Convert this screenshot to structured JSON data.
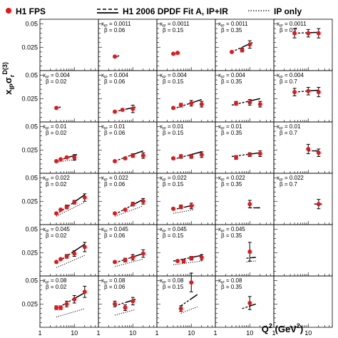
{
  "chart_data": {
    "type": "scatter",
    "title": "",
    "ylabel_base": "x",
    "ylabel_sub": "IP",
    "ylabel_mid": "σ",
    "ylabel_sub2": "r",
    "ylabel_sup": "D(3)",
    "xlabel_base": "Q",
    "xlabel_sup": "2",
    "xlabel_unit": " (GeV",
    "xlabel_unit_sup": "2",
    "xlabel_close": ")",
    "x_scale": "log",
    "xlim": [
      1,
      50
    ],
    "ylim": [
      0,
      0.055
    ],
    "x_ticks": [
      1,
      10
    ],
    "x_tick_labels": [
      "1",
      "10"
    ],
    "y_ticks": [
      0.025,
      0.05
    ],
    "y_tick_labels": [
      "0.025",
      "0.05"
    ],
    "grid": false,
    "legend_placement": "top",
    "legend": [
      {
        "label": "H1 FPS",
        "style": "marker",
        "color": "#e8161b"
      },
      {
        "label": "H1 2006 DPDF Fit A, IP+IR",
        "style": "dashed-solid"
      },
      {
        "label": "IP only",
        "style": "dotted"
      }
    ],
    "xp_prefix": "x",
    "xp_sub": "IP",
    "beta_prefix": "β",
    "rows": [
      {
        "xp": "0.004",
        "mult": 1
      },
      {
        "xp": "0.01",
        "mult": 1
      },
      {
        "xp": "0.022",
        "mult": 1
      },
      {
        "xp": "0.045",
        "mult": 1
      },
      {
        "xp": "0.08",
        "mult": 1
      }
    ],
    "panels": [
      {
        "row": 0,
        "col": 1,
        "xp": "0.0011",
        "beta": "0.06",
        "points": [
          [
            3,
            0.015,
            0.001
          ]
        ],
        "fit": [
          [
            3,
            0.014
          ],
          [
            4,
            0.016
          ]
        ],
        "ip": []
      },
      {
        "row": 0,
        "col": 2,
        "xp": "0.0011",
        "beta": "0.15",
        "points": [
          [
            3,
            0.018,
            0.001
          ],
          [
            4,
            0.019,
            0.001
          ]
        ],
        "fit": [
          [
            3,
            0.017
          ],
          [
            4,
            0.019
          ]
        ],
        "ip": []
      },
      {
        "row": 0,
        "col": 3,
        "xp": "0.0011",
        "beta": "0.35",
        "points": [
          [
            3,
            0.02,
            0.001
          ],
          [
            6,
            0.022,
            0.002
          ],
          [
            10,
            0.028,
            0.004
          ]
        ],
        "fit": [
          [
            3,
            0.02
          ],
          [
            12,
            0.03
          ]
        ],
        "ip": []
      },
      {
        "row": 0,
        "col": 4,
        "xp": "0.0011",
        "beta": "0.7",
        "points": [
          [
            4,
            0.04,
            0.005
          ],
          [
            10,
            0.04,
            0.004
          ],
          [
            20,
            0.04,
            0.005
          ]
        ],
        "fit": [
          [
            4,
            0.04
          ],
          [
            20,
            0.041
          ]
        ],
        "ip": []
      },
      {
        "row": 1,
        "col": 0,
        "xp": "0.004",
        "beta": "0.02",
        "points": [
          [
            3,
            0.015,
            0.001
          ]
        ],
        "fit": [
          [
            3,
            0.015
          ],
          [
            4,
            0.016
          ]
        ],
        "ip": []
      },
      {
        "row": 1,
        "col": 1,
        "xp": "0.004",
        "beta": "0.06",
        "points": [
          [
            3,
            0.011,
            0.001
          ],
          [
            5,
            0.013,
            0.001
          ],
          [
            10,
            0.014,
            0.004
          ]
        ],
        "fit": [
          [
            3,
            0.011
          ],
          [
            12,
            0.016
          ]
        ],
        "ip": []
      },
      {
        "row": 1,
        "col": 2,
        "xp": "0.004",
        "beta": "0.15",
        "points": [
          [
            3,
            0.015,
            0.001
          ],
          [
            5,
            0.018,
            0.002
          ],
          [
            10,
            0.02,
            0.003
          ],
          [
            20,
            0.019,
            0.003
          ]
        ],
        "fit": [
          [
            3,
            0.014
          ],
          [
            20,
            0.024
          ]
        ],
        "ip": []
      },
      {
        "row": 1,
        "col": 3,
        "xp": "0.004",
        "beta": "0.35",
        "points": [
          [
            4,
            0.02,
            0.002
          ],
          [
            10,
            0.021,
            0.003
          ],
          [
            20,
            0.019,
            0.003
          ]
        ],
        "fit": [
          [
            3,
            0.018
          ],
          [
            20,
            0.025
          ]
        ],
        "ip": []
      },
      {
        "row": 1,
        "col": 4,
        "xp": "0.004",
        "beta": "0.7",
        "points": [
          [
            4,
            0.032,
            0.004
          ],
          [
            10,
            0.033,
            0.004
          ],
          [
            20,
            0.032,
            0.005
          ]
        ],
        "fit": [
          [
            4,
            0.032
          ],
          [
            20,
            0.034
          ]
        ],
        "ip": []
      },
      {
        "row": 2,
        "col": 0,
        "xp": "0.01",
        "beta": "0.02",
        "points": [
          [
            3,
            0.013,
            0.001
          ],
          [
            4,
            0.015,
            0.001
          ],
          [
            6,
            0.017,
            0.001
          ],
          [
            10,
            0.017,
            0.003
          ]
        ],
        "fit": [
          [
            3,
            0.013
          ],
          [
            12,
            0.02
          ]
        ],
        "ip": [
          [
            3,
            0.012
          ],
          [
            12,
            0.015
          ]
        ]
      },
      {
        "row": 2,
        "col": 1,
        "xp": "0.01",
        "beta": "0.06",
        "points": [
          [
            3,
            0.013,
            0.001
          ],
          [
            6,
            0.016,
            0.001
          ],
          [
            10,
            0.019,
            0.002
          ],
          [
            20,
            0.019,
            0.003
          ]
        ],
        "fit": [
          [
            3,
            0.013
          ],
          [
            20,
            0.024
          ]
        ],
        "ip": []
      },
      {
        "row": 2,
        "col": 2,
        "xp": "0.01",
        "beta": "0.15",
        "points": [
          [
            3,
            0.016,
            0.001
          ],
          [
            5,
            0.018,
            0.002
          ],
          [
            10,
            0.018,
            0.002
          ],
          [
            20,
            0.02,
            0.003
          ]
        ],
        "fit": [
          [
            3,
            0.015
          ],
          [
            20,
            0.023
          ]
        ],
        "ip": []
      },
      {
        "row": 2,
        "col": 3,
        "xp": "0.01",
        "beta": "0.35",
        "points": [
          [
            4,
            0.017,
            0.002
          ],
          [
            10,
            0.02,
            0.002
          ],
          [
            20,
            0.021,
            0.003
          ]
        ],
        "fit": [
          [
            3,
            0.018
          ],
          [
            20,
            0.022
          ]
        ],
        "ip": []
      },
      {
        "row": 2,
        "col": 4,
        "xp": "0.01",
        "beta": "0.7",
        "points": [
          [
            10,
            0.026,
            0.005
          ],
          [
            20,
            0.022,
            0.004
          ]
        ],
        "fit": [
          [
            10,
            0.024
          ],
          [
            20,
            0.024
          ]
        ],
        "ip": []
      },
      {
        "row": 3,
        "col": 0,
        "xp": "0.022",
        "beta": "0.02",
        "points": [
          [
            3,
            0.012,
            0.001
          ],
          [
            4,
            0.016,
            0.001
          ],
          [
            6,
            0.019,
            0.002
          ],
          [
            10,
            0.024,
            0.002
          ],
          [
            20,
            0.029,
            0.004
          ]
        ],
        "fit": [
          [
            3,
            0.011
          ],
          [
            20,
            0.032
          ]
        ],
        "ip": [
          [
            3,
            0.009
          ],
          [
            20,
            0.024
          ]
        ]
      },
      {
        "row": 3,
        "col": 1,
        "xp": "0.022",
        "beta": "0.06",
        "points": [
          [
            3,
            0.012,
            0.001
          ],
          [
            6,
            0.016,
            0.001
          ],
          [
            10,
            0.022,
            0.002
          ],
          [
            20,
            0.025,
            0.003
          ]
        ],
        "fit": [
          [
            3,
            0.011
          ],
          [
            20,
            0.027
          ]
        ],
        "ip": [
          [
            3,
            0.009
          ],
          [
            20,
            0.02
          ]
        ]
      },
      {
        "row": 3,
        "col": 2,
        "xp": "0.022",
        "beta": "0.15",
        "points": [
          [
            3,
            0.017,
            0.001
          ],
          [
            5,
            0.019,
            0.002
          ],
          [
            10,
            0.02,
            0.003
          ]
        ],
        "fit": [
          [
            3,
            0.016
          ],
          [
            12,
            0.021
          ]
        ],
        "ip": [
          [
            3,
            0.012
          ],
          [
            12,
            0.016
          ]
        ]
      },
      {
        "row": 3,
        "col": 3,
        "xp": "0.022",
        "beta": "0.35",
        "points": [
          [
            10,
            0.022,
            0.004
          ]
        ],
        "fit": [
          [
            10,
            0.018
          ],
          [
            20,
            0.018
          ]
        ],
        "ip": []
      },
      {
        "row": 3,
        "col": 4,
        "xp": "0.022",
        "beta": "0.7",
        "points": [
          [
            20,
            0.022,
            0.005
          ]
        ],
        "fit": [
          [
            15,
            0.022
          ],
          [
            25,
            0.022
          ]
        ],
        "ip": []
      },
      {
        "row": 4,
        "col": 0,
        "xp": "0.045",
        "beta": "0.02",
        "points": [
          [
            3,
            0.015,
            0.001
          ],
          [
            4,
            0.018,
            0.001
          ],
          [
            6,
            0.021,
            0.002
          ],
          [
            10,
            0.024,
            0.003
          ],
          [
            20,
            0.031,
            0.005
          ]
        ],
        "fit": [
          [
            3,
            0.014
          ],
          [
            20,
            0.034
          ]
        ],
        "ip": [
          [
            3,
            0.009
          ],
          [
            20,
            0.022
          ]
        ]
      },
      {
        "row": 4,
        "col": 1,
        "xp": "0.045",
        "beta": "0.06",
        "points": [
          [
            3,
            0.015,
            0.001
          ],
          [
            6,
            0.017,
            0.002
          ],
          [
            10,
            0.02,
            0.003
          ],
          [
            20,
            0.024,
            0.004
          ]
        ],
        "fit": [
          [
            3,
            0.014
          ],
          [
            20,
            0.024
          ]
        ],
        "ip": [
          [
            3,
            0.01
          ],
          [
            20,
            0.018
          ]
        ]
      },
      {
        "row": 4,
        "col": 2,
        "xp": "0.045",
        "beta": "0.15",
        "points": [
          [
            4,
            0.016,
            0.001
          ],
          [
            6,
            0.016,
            0.002
          ],
          [
            10,
            0.019,
            0.002
          ],
          [
            20,
            0.02,
            0.003
          ]
        ],
        "fit": [
          [
            3,
            0.016
          ],
          [
            20,
            0.022
          ]
        ],
        "ip": [
          [
            3,
            0.012
          ],
          [
            20,
            0.016
          ]
        ]
      },
      {
        "row": 4,
        "col": 3,
        "xp": "0.045",
        "beta": "0.35",
        "points": [
          [
            10,
            0.026,
            0.01
          ]
        ],
        "fit": [
          [
            8,
            0.019
          ],
          [
            15,
            0.02
          ]
        ],
        "ip": [
          [
            8,
            0.015
          ],
          [
            15,
            0.016
          ]
        ]
      },
      {
        "row": 5,
        "col": 0,
        "xp": "0.08",
        "beta": "0.02",
        "points": [
          [
            3,
            0.021,
            0.002
          ],
          [
            4,
            0.021,
            0.002
          ],
          [
            6,
            0.025,
            0.003
          ],
          [
            10,
            0.03,
            0.004
          ],
          [
            20,
            0.038,
            0.006
          ]
        ],
        "fit": [
          [
            3,
            0.02
          ],
          [
            20,
            0.037
          ]
        ],
        "ip": [
          [
            3,
            0.011
          ],
          [
            20,
            0.02
          ]
        ]
      },
      {
        "row": 5,
        "col": 1,
        "xp": "0.08",
        "beta": "0.06",
        "points": [
          [
            3,
            0.025,
            0.003
          ],
          [
            6,
            0.021,
            0.003
          ],
          [
            10,
            0.028,
            0.004
          ]
        ],
        "fit": [
          [
            3,
            0.023
          ],
          [
            12,
            0.03
          ]
        ],
        "ip": [
          [
            3,
            0.013
          ],
          [
            12,
            0.019
          ]
        ]
      },
      {
        "row": 5,
        "col": 2,
        "xp": "0.08",
        "beta": "0.15",
        "points": [
          [
            10,
            0.048,
            0.01
          ],
          [
            5,
            0.02,
            0.003
          ]
        ],
        "fit": [
          [
            5,
            0.023
          ],
          [
            15,
            0.035
          ]
        ],
        "ip": [
          [
            5,
            0.015
          ],
          [
            15,
            0.022
          ]
        ]
      },
      {
        "row": 5,
        "col": 3,
        "xp": "0.08",
        "beta": "0.35",
        "points": [
          [
            10,
            0.026,
            0.007
          ]
        ],
        "fit": [
          [
            6,
            0.02
          ],
          [
            15,
            0.025
          ]
        ],
        "ip": []
      }
    ]
  }
}
